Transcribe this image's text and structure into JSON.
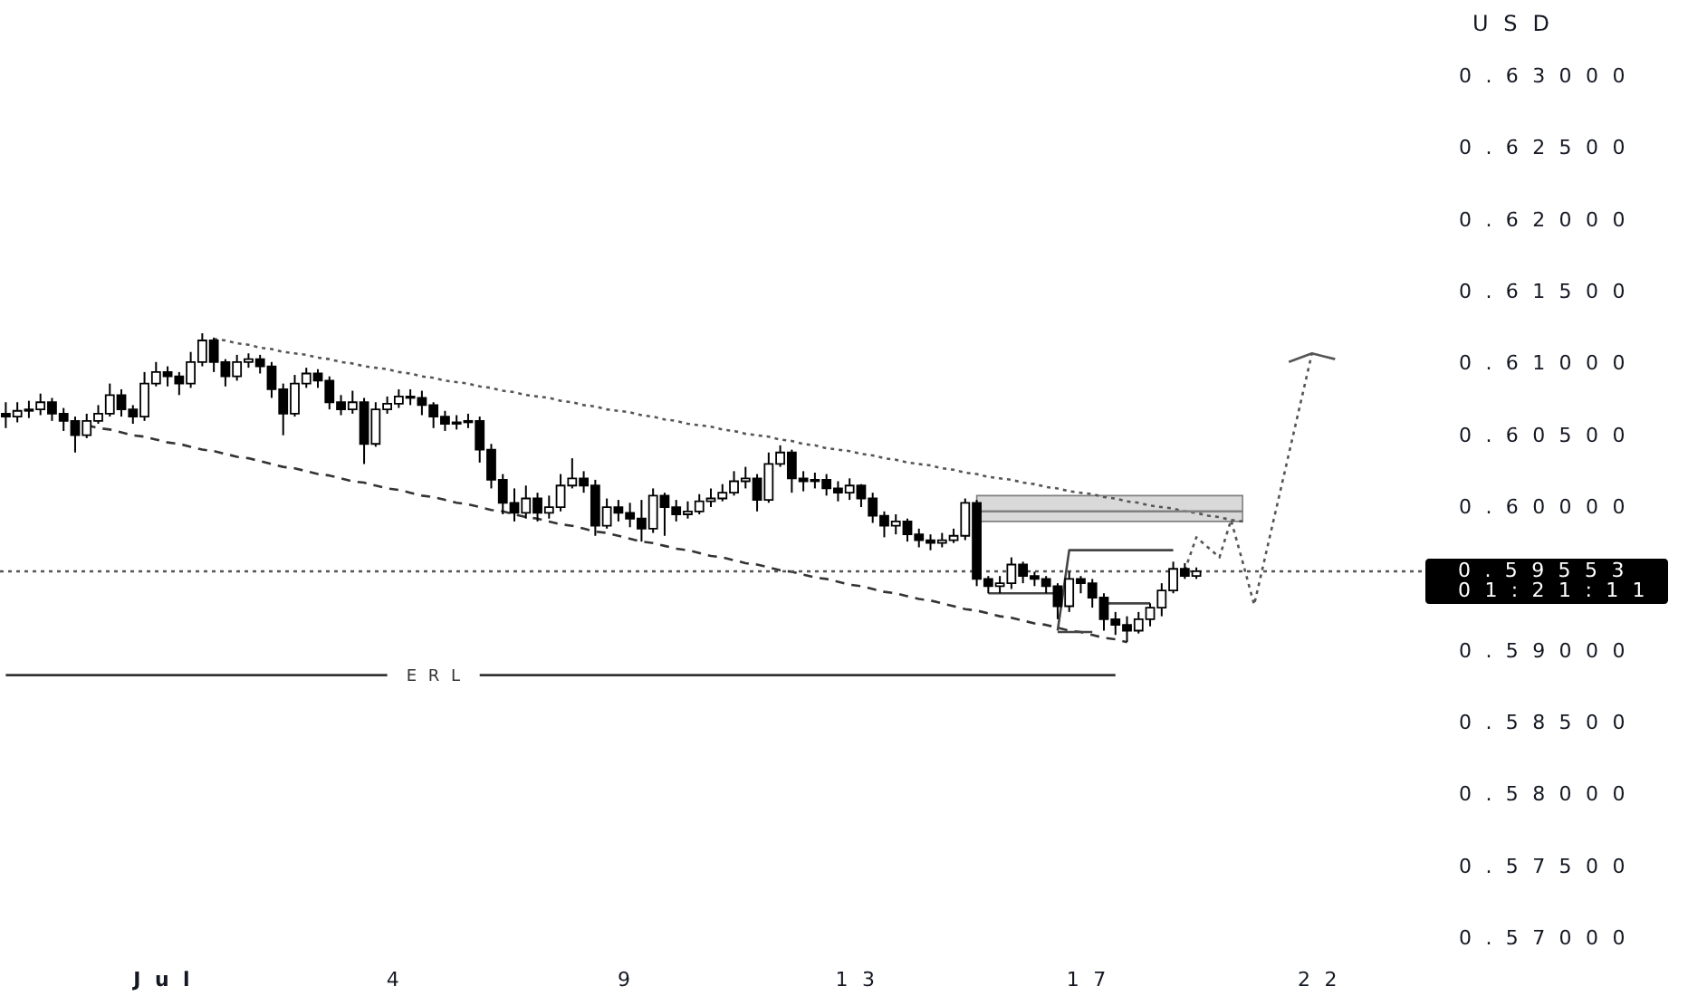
{
  "chart_data": {
    "type": "candlestick",
    "ylabel": "USD",
    "categories": [
      null,
      null,
      null,
      null,
      null,
      null,
      null,
      null,
      null,
      null,
      null,
      null,
      null,
      null,
      "Jul",
      null,
      null,
      null,
      null,
      null,
      null,
      null,
      null,
      null,
      null,
      null,
      null,
      null,
      null,
      null,
      null,
      null,
      null,
      null,
      "4",
      null,
      null,
      null,
      null,
      null,
      null,
      null,
      null,
      null,
      null,
      null,
      null,
      null,
      null,
      null,
      null,
      null,
      null,
      null,
      "9",
      null,
      null,
      null,
      null,
      null,
      null,
      null,
      null,
      null,
      null,
      null,
      null,
      null,
      null,
      null,
      null,
      null,
      null,
      null,
      "13",
      null,
      null,
      null,
      null,
      null,
      null,
      null,
      null,
      null,
      null,
      null,
      null,
      null,
      null,
      null,
      null,
      null,
      null,
      null,
      "17",
      null,
      null,
      null,
      null,
      null,
      null,
      null,
      null,
      null,
      null,
      null,
      null,
      null,
      null,
      null,
      null,
      null,
      null,
      null,
      "22",
      null,
      null,
      null,
      null,
      null,
      null,
      null,
      null
    ],
    "ylim": [
      0.57,
      0.6353
    ],
    "yticks": [
      {
        "value": 0.57,
        "label": "0.57000"
      },
      {
        "value": 0.575,
        "label": "0.57500"
      },
      {
        "value": 0.58,
        "label": "0.58000"
      },
      {
        "value": 0.585,
        "label": "0.58500"
      },
      {
        "value": 0.59,
        "label": "0.59000"
      },
      {
        "value": 0.6,
        "label": "0.60000"
      },
      {
        "value": 0.605,
        "label": "0.60500"
      },
      {
        "value": 0.61,
        "label": "0.61000"
      },
      {
        "value": 0.615,
        "label": "0.61500"
      },
      {
        "value": 0.62,
        "label": "0.62000"
      },
      {
        "value": 0.625,
        "label": "0.62500"
      },
      {
        "value": 0.63,
        "label": "0.63000"
      }
    ],
    "series": [
      {
        "color": "#000000",
        "ohlc": [
          [
            0.6065,
            0.6073,
            0.6055,
            0.6063
          ],
          [
            0.6063,
            0.6073,
            0.6059,
            0.6067
          ],
          [
            0.6067,
            0.6074,
            0.6062,
            0.6068
          ],
          [
            0.6068,
            0.6079,
            0.6064,
            0.6073
          ],
          [
            0.6073,
            0.6076,
            0.606,
            0.6065
          ],
          [
            0.6065,
            0.6069,
            0.6053,
            0.606
          ],
          [
            0.606,
            0.6063,
            0.6038,
            0.605
          ],
          [
            0.605,
            0.6065,
            0.6048,
            0.606
          ],
          [
            0.606,
            0.6071,
            0.6058,
            0.6065
          ],
          [
            0.6065,
            0.6086,
            0.6063,
            0.6078
          ],
          [
            0.6078,
            0.6082,
            0.6063,
            0.6068
          ],
          [
            0.6068,
            0.6071,
            0.6058,
            0.6063
          ],
          [
            0.6063,
            0.6094,
            0.606,
            0.6086
          ],
          [
            0.6086,
            0.6101,
            0.6084,
            0.6094
          ],
          [
            0.6094,
            0.6098,
            0.6084,
            0.6091
          ],
          [
            0.6091,
            0.6094,
            0.6078,
            0.6086
          ],
          [
            0.6086,
            0.6108,
            0.6083,
            0.6101
          ],
          [
            0.6101,
            0.6121,
            0.6098,
            0.6116
          ],
          [
            0.6116,
            0.6118,
            0.6094,
            0.6101
          ],
          [
            0.6101,
            0.6103,
            0.6084,
            0.6091
          ],
          [
            0.6091,
            0.6106,
            0.6088,
            0.6101
          ],
          [
            0.6101,
            0.6107,
            0.6097,
            0.6103
          ],
          [
            0.6103,
            0.6106,
            0.6093,
            0.6098
          ],
          [
            0.6098,
            0.6101,
            0.6076,
            0.6082
          ],
          [
            0.6082,
            0.6086,
            0.605,
            0.6065
          ],
          [
            0.6065,
            0.6092,
            0.6063,
            0.6086
          ],
          [
            0.6086,
            0.6097,
            0.6083,
            0.6093
          ],
          [
            0.6093,
            0.6096,
            0.6083,
            0.6088
          ],
          [
            0.6088,
            0.6091,
            0.6068,
            0.6073
          ],
          [
            0.6073,
            0.6078,
            0.6064,
            0.6068
          ],
          [
            0.6068,
            0.6081,
            0.6065,
            0.6073
          ],
          [
            0.6073,
            0.6076,
            0.603,
            0.6044
          ],
          [
            0.6044,
            0.6073,
            0.6042,
            0.6068
          ],
          [
            0.6068,
            0.6077,
            0.6065,
            0.6072
          ],
          [
            0.6072,
            0.6082,
            0.6069,
            0.6077
          ],
          [
            0.6077,
            0.6082,
            0.6071,
            0.6076
          ],
          [
            0.6076,
            0.6081,
            0.6064,
            0.6071
          ],
          [
            0.6071,
            0.6073,
            0.6055,
            0.6063
          ],
          [
            0.6063,
            0.6067,
            0.6053,
            0.6058
          ],
          [
            0.6058,
            0.6064,
            0.6054,
            0.6059
          ],
          [
            0.6059,
            0.6065,
            0.6055,
            0.606
          ],
          [
            0.606,
            0.6063,
            0.6031,
            0.604
          ],
          [
            0.604,
            0.6044,
            0.6013,
            0.6019
          ],
          [
            0.6019,
            0.6023,
            0.5995,
            0.6003
          ],
          [
            0.6003,
            0.6013,
            0.599,
            0.5996
          ],
          [
            0.5996,
            0.6015,
            0.5992,
            0.6006
          ],
          [
            0.6006,
            0.601,
            0.599,
            0.5996
          ],
          [
            0.5996,
            0.6008,
            0.5992,
            0.6
          ],
          [
            0.6,
            0.6023,
            0.5997,
            0.6015
          ],
          [
            0.6015,
            0.6034,
            0.6013,
            0.602
          ],
          [
            0.602,
            0.6025,
            0.601,
            0.6015
          ],
          [
            0.6015,
            0.6019,
            0.598,
            0.5987
          ],
          [
            0.5987,
            0.6006,
            0.5985,
            0.6
          ],
          [
            0.6,
            0.6005,
            0.599,
            0.5996
          ],
          [
            0.5996,
            0.6003,
            0.5986,
            0.5992
          ],
          [
            0.5992,
            0.6005,
            0.5976,
            0.5985
          ],
          [
            0.5985,
            0.6013,
            0.5982,
            0.6008
          ],
          [
            0.6008,
            0.601,
            0.598,
            0.6
          ],
          [
            0.6,
            0.6005,
            0.599,
            0.5995
          ],
          [
            0.5995,
            0.6004,
            0.5992,
            0.5997
          ],
          [
            0.5997,
            0.6009,
            0.5995,
            0.6004
          ],
          [
            0.6004,
            0.6013,
            0.6,
            0.6006
          ],
          [
            0.6006,
            0.6016,
            0.6004,
            0.601
          ],
          [
            0.601,
            0.6025,
            0.6008,
            0.6018
          ],
          [
            0.6018,
            0.6028,
            0.6013,
            0.602
          ],
          [
            0.602,
            0.6023,
            0.5997,
            0.6005
          ],
          [
            0.6005,
            0.6038,
            0.6003,
            0.603
          ],
          [
            0.603,
            0.6043,
            0.6028,
            0.6038
          ],
          [
            0.6038,
            0.604,
            0.601,
            0.602
          ],
          [
            0.602,
            0.6025,
            0.6011,
            0.6018
          ],
          [
            0.6018,
            0.6024,
            0.6013,
            0.6019
          ],
          [
            0.6019,
            0.6023,
            0.6008,
            0.6013
          ],
          [
            0.6013,
            0.6018,
            0.6004,
            0.601
          ],
          [
            0.601,
            0.602,
            0.6005,
            0.6015
          ],
          [
            0.6015,
            0.6016,
            0.6,
            0.6006
          ],
          [
            0.6006,
            0.601,
            0.5989,
            0.5994
          ],
          [
            0.5994,
            0.5997,
            0.5979,
            0.5987
          ],
          [
            0.5987,
            0.5995,
            0.5981,
            0.599
          ],
          [
            0.599,
            0.5992,
            0.5976,
            0.5981
          ],
          [
            0.5981,
            0.5985,
            0.5972,
            0.5977
          ],
          [
            0.5977,
            0.5981,
            0.597,
            0.5975
          ],
          [
            0.5975,
            0.5982,
            0.5972,
            0.5977
          ],
          [
            0.5977,
            0.5985,
            0.5975,
            0.598
          ],
          [
            0.598,
            0.6006,
            0.5977,
            0.6003
          ],
          [
            0.6003,
            0.6005,
            0.5945,
            0.595
          ],
          [
            0.595,
            0.5952,
            0.594,
            0.5945
          ],
          [
            0.5945,
            0.5952,
            0.594,
            0.5947
          ],
          [
            0.5947,
            0.5965,
            0.5943,
            0.596
          ],
          [
            0.596,
            0.5962,
            0.5947,
            0.5952
          ],
          [
            0.5952,
            0.5955,
            0.5945,
            0.595
          ],
          [
            0.595,
            0.5952,
            0.594,
            0.5945
          ],
          [
            0.5945,
            0.5947,
            0.5922,
            0.5931
          ],
          [
            0.5931,
            0.5955,
            0.5927,
            0.595
          ],
          [
            0.595,
            0.5952,
            0.594,
            0.5947
          ],
          [
            0.5947,
            0.595,
            0.593,
            0.5937
          ],
          [
            0.5937,
            0.594,
            0.5914,
            0.5922
          ],
          [
            0.5922,
            0.5927,
            0.5911,
            0.5918
          ],
          [
            0.5918,
            0.5924,
            0.5906,
            0.5914
          ],
          [
            0.5914,
            0.5927,
            0.5912,
            0.5922
          ],
          [
            0.5922,
            0.5933,
            0.5917,
            0.593
          ],
          [
            0.593,
            0.5947,
            0.5924,
            0.5942
          ],
          [
            0.5942,
            0.5962,
            0.594,
            0.5957
          ],
          [
            0.5957,
            0.5961,
            0.595,
            0.5952
          ],
          [
            0.5952,
            0.5958,
            0.595,
            0.59553
          ],
          null,
          null,
          null,
          null,
          null,
          null,
          null,
          null,
          null,
          null,
          null,
          null,
          null,
          null,
          null,
          null,
          null,
          null,
          null
        ]
      },
      {
        "type": "line",
        "color": "#555555",
        "line_style": "dotted",
        "values": [
          null,
          null,
          null,
          null,
          null,
          null,
          null,
          null,
          null,
          null,
          null,
          null,
          null,
          null,
          null,
          null,
          null,
          null,
          0.6117,
          0.6116,
          0.6114,
          0.6113,
          0.6111,
          0.611,
          0.6108,
          0.6107,
          0.6106,
          0.6104,
          0.6103,
          0.6101,
          0.61,
          0.6098,
          0.6097,
          0.6096,
          0.6094,
          0.6093,
          0.6091,
          0.609,
          0.6088,
          0.6087,
          0.6086,
          0.6084,
          0.6083,
          0.6081,
          0.608,
          0.6078,
          0.6077,
          0.6076,
          0.6074,
          0.6073,
          0.6071,
          0.607,
          0.6068,
          0.6067,
          0.6066,
          0.6064,
          0.6063,
          0.6061,
          0.606,
          0.6058,
          0.6057,
          0.6056,
          0.6054,
          0.6053,
          0.6051,
          0.605,
          0.6049,
          0.6047,
          0.6046,
          0.6044,
          0.6043,
          0.6041,
          0.604,
          0.6039,
          0.6037,
          0.6036,
          0.6034,
          0.6033,
          0.6031,
          0.603,
          0.6029,
          0.6027,
          0.6026,
          0.6024,
          0.6023,
          0.6021,
          0.602,
          0.6019,
          0.6017,
          0.6016,
          0.6014,
          0.6013,
          0.6011,
          0.601,
          0.6009,
          0.6007,
          0.6006,
          0.6004,
          0.6003,
          0.6001,
          0.6,
          0.5999,
          0.5997,
          0.5996,
          0.5994,
          0.5993,
          0.5991,
          0.599,
          null,
          null,
          null,
          null,
          null,
          null,
          null,
          null,
          null,
          null,
          null,
          null,
          null,
          null,
          null
        ]
      },
      {
        "type": "line",
        "color": "#333333",
        "line_style": "dashed",
        "values": [
          null,
          null,
          null,
          null,
          null,
          null,
          null,
          0.6057,
          0.6055,
          0.6054,
          0.6052,
          0.605,
          0.6049,
          0.6047,
          0.6045,
          0.6044,
          0.6042,
          0.604,
          0.6039,
          0.6037,
          0.6035,
          0.6034,
          0.6032,
          0.603,
          0.6028,
          0.6027,
          0.6025,
          0.6023,
          0.6022,
          0.602,
          0.6018,
          0.6017,
          0.6015,
          0.6013,
          0.6012,
          0.601,
          0.6008,
          0.6007,
          0.6005,
          0.6003,
          0.6002,
          0.6,
          0.5998,
          0.5997,
          0.5995,
          0.5993,
          0.5992,
          0.599,
          0.5988,
          0.5987,
          0.5985,
          0.5983,
          0.5982,
          0.598,
          0.5978,
          0.5976,
          0.5975,
          0.5973,
          0.5971,
          0.597,
          0.5968,
          0.5966,
          0.5965,
          0.5963,
          0.5961,
          0.596,
          0.5958,
          0.5956,
          0.5955,
          0.5953,
          0.5951,
          0.595,
          0.5948,
          0.5946,
          0.5945,
          0.5943,
          0.5941,
          0.594,
          0.5938,
          0.5936,
          0.5935,
          0.5933,
          0.5931,
          0.5929,
          0.5928,
          0.5926,
          0.5924,
          0.5923,
          0.5921,
          0.5919,
          0.5918,
          0.5916,
          0.5914,
          0.5913,
          0.5911,
          0.5909,
          0.5908,
          0.5906,
          null,
          null,
          null,
          null,
          null,
          null,
          null,
          null,
          null,
          null,
          null,
          null,
          null,
          null,
          null,
          null,
          null,
          null,
          null,
          null,
          null,
          null,
          null,
          null,
          null
        ]
      },
      {
        "type": "line",
        "name": "ERL",
        "color": "#333333",
        "values": [
          0.5883,
          0.5883,
          0.5883,
          0.5883,
          0.5883,
          0.5883,
          0.5883,
          0.5883,
          0.5883,
          0.5883,
          0.5883,
          0.5883,
          0.5883,
          0.5883,
          0.5883,
          0.5883,
          0.5883,
          0.5883,
          0.5883,
          0.5883,
          0.5883,
          0.5883,
          0.5883,
          0.5883,
          0.5883,
          0.5883,
          0.5883,
          0.5883,
          0.5883,
          0.5883,
          0.5883,
          0.5883,
          0.5883,
          0.5883,
          null,
          null,
          null,
          null,
          null,
          null,
          null,
          0.5883,
          0.5883,
          0.5883,
          0.5883,
          0.5883,
          0.5883,
          0.5883,
          0.5883,
          0.5883,
          0.5883,
          0.5883,
          0.5883,
          0.5883,
          0.5883,
          0.5883,
          0.5883,
          0.5883,
          0.5883,
          0.5883,
          0.5883,
          0.5883,
          0.5883,
          0.5883,
          0.5883,
          0.5883,
          0.5883,
          0.5883,
          0.5883,
          0.5883,
          0.5883,
          0.5883,
          0.5883,
          0.5883,
          0.5883,
          0.5883,
          0.5883,
          0.5883,
          0.5883,
          0.5883,
          0.5883,
          0.5883,
          0.5883,
          0.5883,
          0.5883,
          0.5883,
          0.5883,
          0.5883,
          0.5883,
          0.5883,
          0.5883,
          0.5883,
          0.5883,
          0.5883,
          0.5883,
          0.5883,
          0.5883,
          null,
          null,
          null,
          null,
          null,
          null,
          null,
          null,
          null,
          null,
          null,
          null,
          null,
          null,
          null,
          null,
          null,
          null,
          null,
          null,
          null,
          null,
          null,
          null,
          null,
          null
        ]
      },
      {
        "type": "line",
        "color": "#808080",
        "values": [
          null,
          null,
          null,
          null,
          null,
          null,
          null,
          null,
          null,
          null,
          null,
          null,
          null,
          null,
          null,
          null,
          null,
          null,
          null,
          null,
          null,
          null,
          null,
          null,
          null,
          null,
          null,
          null,
          null,
          null,
          null,
          null,
          null,
          null,
          null,
          null,
          null,
          null,
          null,
          null,
          null,
          null,
          null,
          null,
          null,
          null,
          null,
          null,
          null,
          null,
          null,
          null,
          null,
          null,
          null,
          null,
          null,
          null,
          null,
          null,
          null,
          null,
          null,
          null,
          null,
          null,
          null,
          null,
          null,
          null,
          null,
          null,
          null,
          null,
          null,
          null,
          null,
          null,
          null,
          null,
          null,
          null,
          null,
          null,
          0.5997,
          0.5997,
          0.5997,
          0.5997,
          0.5997,
          0.5997,
          0.5997,
          0.5997,
          0.5997,
          0.5997,
          0.5997,
          0.5997,
          0.5997,
          0.5997,
          0.5997,
          0.5997,
          0.5997,
          0.5997,
          0.5997,
          0.5997,
          0.5997,
          0.5997,
          0.5997,
          0.5997,
          null,
          null,
          null,
          null,
          null,
          null,
          null,
          null,
          null,
          null,
          null,
          null,
          null,
          null,
          null
        ],
        "lower": [
          null,
          null,
          null,
          null,
          null,
          null,
          null,
          null,
          null,
          null,
          null,
          null,
          null,
          null,
          null,
          null,
          null,
          null,
          null,
          null,
          null,
          null,
          null,
          null,
          null,
          null,
          null,
          null,
          null,
          null,
          null,
          null,
          null,
          null,
          null,
          null,
          null,
          null,
          null,
          null,
          null,
          null,
          null,
          null,
          null,
          null,
          null,
          null,
          null,
          null,
          null,
          null,
          null,
          null,
          null,
          null,
          null,
          null,
          null,
          null,
          null,
          null,
          null,
          null,
          null,
          null,
          null,
          null,
          null,
          null,
          null,
          null,
          null,
          null,
          null,
          null,
          null,
          null,
          null,
          null,
          null,
          null,
          null,
          null,
          0.599,
          0.599,
          0.599,
          0.599,
          0.599,
          0.599,
          0.599,
          0.599,
          0.599,
          0.599,
          0.599,
          0.599,
          0.599,
          0.599,
          0.599,
          0.599,
          0.599,
          0.599,
          0.599,
          0.599,
          0.599,
          0.599,
          0.599,
          0.599,
          null,
          null,
          null,
          null,
          null,
          null,
          null,
          null,
          null,
          null,
          null,
          null,
          null,
          null,
          null
        ],
        "upper": [
          null,
          null,
          null,
          null,
          null,
          null,
          null,
          null,
          null,
          null,
          null,
          null,
          null,
          null,
          null,
          null,
          null,
          null,
          null,
          null,
          null,
          null,
          null,
          null,
          null,
          null,
          null,
          null,
          null,
          null,
          null,
          null,
          null,
          null,
          null,
          null,
          null,
          null,
          null,
          null,
          null,
          null,
          null,
          null,
          null,
          null,
          null,
          null,
          null,
          null,
          null,
          null,
          null,
          null,
          null,
          null,
          null,
          null,
          null,
          null,
          null,
          null,
          null,
          null,
          null,
          null,
          null,
          null,
          null,
          null,
          null,
          null,
          null,
          null,
          null,
          null,
          null,
          null,
          null,
          null,
          null,
          null,
          null,
          null,
          0.6008,
          0.6008,
          0.6008,
          0.6008,
          0.6008,
          0.6008,
          0.6008,
          0.6008,
          0.6008,
          0.6008,
          0.6008,
          0.6008,
          0.6008,
          0.6008,
          0.6008,
          0.6008,
          0.6008,
          0.6008,
          0.6008,
          0.6008,
          0.6008,
          0.6008,
          0.6008,
          0.6008,
          null,
          null,
          null,
          null,
          null,
          null,
          null,
          null,
          null,
          null,
          null,
          null,
          null,
          null,
          null
        ]
      },
      {
        "type": "line",
        "color": "#444444",
        "values": [
          null,
          null,
          null,
          null,
          null,
          null,
          null,
          null,
          null,
          null,
          null,
          null,
          null,
          null,
          null,
          null,
          null,
          null,
          null,
          null,
          null,
          null,
          null,
          null,
          null,
          null,
          null,
          null,
          null,
          null,
          null,
          null,
          null,
          null,
          null,
          null,
          null,
          null,
          null,
          null,
          null,
          null,
          null,
          null,
          null,
          null,
          null,
          null,
          null,
          null,
          null,
          null,
          null,
          null,
          null,
          null,
          null,
          null,
          null,
          null,
          null,
          null,
          null,
          null,
          null,
          null,
          null,
          null,
          null,
          null,
          null,
          null,
          null,
          null,
          null,
          null,
          null,
          null,
          null,
          null,
          null,
          null,
          null,
          null,
          null,
          null,
          null,
          null,
          null,
          null,
          null,
          0.5914,
          0.597,
          0.597,
          0.597,
          0.597,
          0.597,
          0.597,
          0.597,
          0.597,
          0.597,
          0.597,
          null,
          null,
          null,
          null,
          null,
          null,
          null,
          null,
          null,
          null,
          null,
          null,
          null,
          null,
          null,
          null,
          null,
          null,
          null,
          null,
          null
        ]
      },
      {
        "type": "line",
        "color": "#444444",
        "values": [
          null,
          null,
          null,
          null,
          null,
          null,
          null,
          null,
          null,
          null,
          null,
          null,
          null,
          null,
          null,
          null,
          null,
          null,
          null,
          null,
          null,
          null,
          null,
          null,
          null,
          null,
          null,
          null,
          null,
          null,
          null,
          null,
          null,
          null,
          null,
          null,
          null,
          null,
          null,
          null,
          null,
          null,
          null,
          null,
          null,
          null,
          null,
          null,
          null,
          null,
          null,
          null,
          null,
          null,
          null,
          null,
          null,
          null,
          null,
          null,
          null,
          null,
          null,
          null,
          null,
          null,
          null,
          null,
          null,
          null,
          null,
          null,
          null,
          null,
          null,
          null,
          null,
          null,
          null,
          null,
          null,
          null,
          null,
          null,
          null,
          0.594,
          0.594,
          0.594,
          0.594,
          0.594,
          0.594,
          0.594,
          null,
          null,
          null,
          null,
          null,
          null,
          null,
          null,
          null,
          null,
          null,
          null,
          null,
          null,
          null,
          null,
          null,
          null,
          null,
          null,
          null,
          null,
          null,
          null,
          null,
          null,
          null,
          null,
          null,
          null,
          null
        ]
      },
      {
        "type": "line",
        "color": "#444444",
        "values": [
          null,
          null,
          null,
          null,
          null,
          null,
          null,
          null,
          null,
          null,
          null,
          null,
          null,
          null,
          null,
          null,
          null,
          null,
          null,
          null,
          null,
          null,
          null,
          null,
          null,
          null,
          null,
          null,
          null,
          null,
          null,
          null,
          null,
          null,
          null,
          null,
          null,
          null,
          null,
          null,
          null,
          null,
          null,
          null,
          null,
          null,
          null,
          null,
          null,
          null,
          null,
          null,
          null,
          null,
          null,
          null,
          null,
          null,
          null,
          null,
          null,
          null,
          null,
          null,
          null,
          null,
          null,
          null,
          null,
          null,
          null,
          null,
          null,
          null,
          null,
          null,
          null,
          null,
          null,
          null,
          null,
          null,
          null,
          null,
          null,
          null,
          null,
          null,
          null,
          null,
          null,
          0.5913,
          0.5913,
          0.5913,
          0.5913,
          null,
          null,
          null,
          null,
          null,
          null,
          null,
          null,
          null,
          null,
          null,
          null,
          null,
          null,
          null,
          null,
          null,
          null,
          null,
          null,
          null,
          null,
          null,
          null,
          null,
          null,
          null,
          null
        ]
      },
      {
        "type": "line",
        "color": "#444444",
        "values": [
          null,
          null,
          null,
          null,
          null,
          null,
          null,
          null,
          null,
          null,
          null,
          null,
          null,
          null,
          null,
          null,
          null,
          null,
          null,
          null,
          null,
          null,
          null,
          null,
          null,
          null,
          null,
          null,
          null,
          null,
          null,
          null,
          null,
          null,
          null,
          null,
          null,
          null,
          null,
          null,
          null,
          null,
          null,
          null,
          null,
          null,
          null,
          null,
          null,
          null,
          null,
          null,
          null,
          null,
          null,
          null,
          null,
          null,
          null,
          null,
          null,
          null,
          null,
          null,
          null,
          null,
          null,
          null,
          null,
          null,
          null,
          null,
          null,
          null,
          null,
          null,
          null,
          null,
          null,
          null,
          null,
          null,
          null,
          null,
          null,
          null,
          null,
          null,
          null,
          null,
          null,
          null,
          null,
          null,
          null,
          0.5933,
          0.5933,
          0.5933,
          0.5933,
          0.5933,
          null,
          null,
          null,
          null,
          null,
          null,
          null,
          null,
          null,
          null,
          null,
          null,
          null,
          null,
          null,
          null,
          null,
          null,
          null,
          null,
          null,
          null,
          null
        ]
      },
      {
        "type": "line",
        "color": "#555555",
        "line_style": "dotted",
        "values": [
          null,
          null,
          null,
          null,
          null,
          null,
          null,
          null,
          null,
          null,
          null,
          null,
          null,
          null,
          null,
          null,
          null,
          null,
          null,
          null,
          null,
          null,
          null,
          null,
          null,
          null,
          null,
          null,
          null,
          null,
          null,
          null,
          null,
          null,
          null,
          null,
          null,
          null,
          null,
          null,
          null,
          null,
          null,
          null,
          null,
          null,
          null,
          null,
          null,
          null,
          null,
          null,
          null,
          null,
          null,
          null,
          null,
          null,
          null,
          null,
          null,
          null,
          null,
          null,
          null,
          null,
          null,
          null,
          null,
          null,
          null,
          null,
          null,
          null,
          null,
          null,
          null,
          null,
          null,
          null,
          null,
          null,
          null,
          null,
          null,
          null,
          null,
          null,
          null,
          null,
          null,
          null,
          null,
          null,
          null,
          null,
          null,
          null,
          null,
          null,
          null,
          null,
          0.5956,
          0.5979,
          0.5972,
          0.5965,
          0.5991,
          0.5962,
          0.5932,
          0.5967,
          0.6002,
          0.6037,
          0.6072,
          0.6107,
          null,
          null,
          null,
          null,
          null,
          null,
          null,
          null,
          null
        ]
      },
      {
        "type": "line",
        "color": "#555555",
        "line_style": "solid",
        "values": [
          null,
          null,
          null,
          null,
          null,
          null,
          null,
          null,
          null,
          null,
          null,
          null,
          null,
          null,
          null,
          null,
          null,
          null,
          null,
          null,
          null,
          null,
          null,
          null,
          null,
          null,
          null,
          null,
          null,
          null,
          null,
          null,
          null,
          null,
          null,
          null,
          null,
          null,
          null,
          null,
          null,
          null,
          null,
          null,
          null,
          null,
          null,
          null,
          null,
          null,
          null,
          null,
          null,
          null,
          null,
          null,
          null,
          null,
          null,
          null,
          null,
          null,
          null,
          null,
          null,
          null,
          null,
          null,
          null,
          null,
          null,
          null,
          null,
          null,
          null,
          null,
          null,
          null,
          null,
          null,
          null,
          null,
          null,
          null,
          null,
          null,
          null,
          null,
          null,
          null,
          null,
          null,
          null,
          null,
          null,
          null,
          null,
          null,
          null,
          null,
          null,
          null,
          null,
          null,
          null,
          null,
          null,
          null,
          null,
          null,
          null,
          0.6101,
          0.6104,
          0.6107,
          0.6105,
          0.6103,
          null,
          null,
          null,
          null,
          null,
          null,
          null
        ]
      }
    ],
    "ref_lines": [
      {
        "axis": "y",
        "value": 0.59553,
        "label": "0.59553",
        "line_style": "dotted",
        "color": "#555555"
      }
    ],
    "annotations": [
      "01:21:11"
    ]
  }
}
